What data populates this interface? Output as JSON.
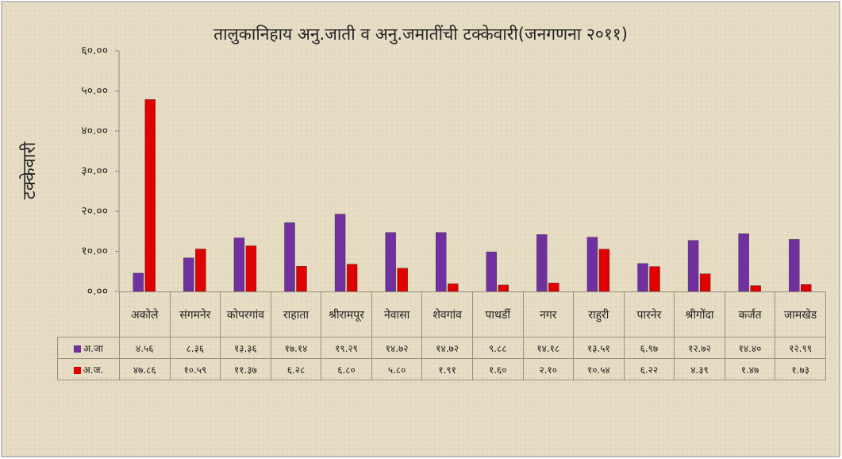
{
  "chart_data": {
    "type": "bar",
    "title": "तालुकानिहाय अनु.जाती व अनु.जमातींची टक्केवारी(जनगणना २०११)",
    "y_label": "टक्केवारी",
    "categories": [
      "अकोले",
      "संगमनेर",
      "कोपरगांव",
      "राहाता",
      "श्रीरामपूर",
      "नेवासा",
      "शेवगांव",
      "पाथर्डी",
      "नगर",
      "राहुरी",
      "पारनेर",
      "श्रीगोंदा",
      "कर्जत",
      "जामखेड"
    ],
    "series": [
      {
        "name": "अ.जा",
        "color": "#7030a0",
        "values": [
          4.56,
          8.36,
          13.36,
          17.14,
          19.29,
          14.72,
          14.72,
          9.88,
          14.18,
          13.51,
          6.97,
          12.72,
          14.4,
          12.99
        ],
        "value_labels": [
          "४.५६",
          "८.३६",
          "१३.३६",
          "१७.१४",
          "१९.२९",
          "१४.७२",
          "१४.७२",
          "९.८८",
          "१४.१८",
          "१३.५१",
          "६.९७",
          "१२.७२",
          "१४.४०",
          "१२.९९"
        ]
      },
      {
        "name": "अ.ज.",
        "color": "#e00000",
        "values": [
          47.86,
          10.59,
          11.37,
          6.28,
          6.8,
          5.8,
          1.91,
          1.6,
          2.1,
          10.54,
          6.22,
          4.39,
          1.47,
          1.73
        ],
        "value_labels": [
          "४७.८६",
          "१०.५९",
          "११.३७",
          "६.२८",
          "६.८०",
          "५.८०",
          "१.९१",
          "१.६०",
          "२.१०",
          "१०.५४",
          "६.२२",
          "४.३९",
          "१.४७",
          "१.७३"
        ]
      }
    ],
    "ylim": [
      0,
      60
    ],
    "yticks": [
      {
        "value": 0,
        "label": "०.००"
      },
      {
        "value": 10,
        "label": "१०.००"
      },
      {
        "value": 20,
        "label": "२०.००"
      },
      {
        "value": 30,
        "label": "३०.००"
      },
      {
        "value": 40,
        "label": "४०.००"
      },
      {
        "value": 50,
        "label": "५०.००"
      },
      {
        "value": 60,
        "label": "६०.००"
      }
    ],
    "grid": false
  }
}
